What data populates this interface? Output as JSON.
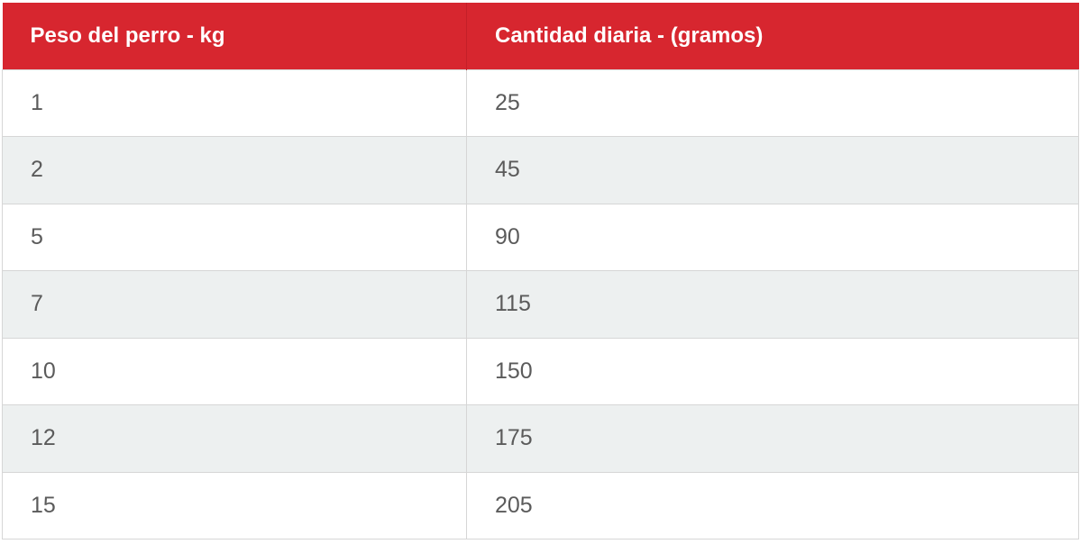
{
  "table": {
    "headers": [
      "Peso del perro - kg",
      "Cantidad diaria - (gramos)"
    ],
    "rows": [
      [
        "1",
        "25"
      ],
      [
        "2",
        "45"
      ],
      [
        "5",
        "90"
      ],
      [
        "7",
        "115"
      ],
      [
        "10",
        "150"
      ],
      [
        "12",
        "175"
      ],
      [
        "15",
        "205"
      ]
    ]
  },
  "colors": {
    "header_bg": "#d7262f",
    "header_text": "#ffffff",
    "alt_row_bg": "#edf0f0",
    "cell_text": "#5b5b5b"
  }
}
